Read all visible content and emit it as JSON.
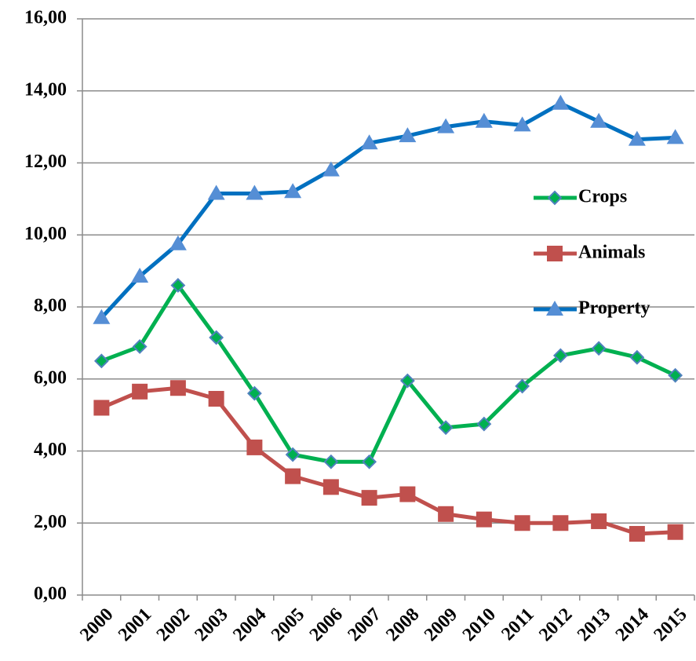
{
  "chart_data": {
    "type": "line",
    "categories": [
      "2000",
      "2001",
      "2002",
      "2003",
      "2004",
      "2005",
      "2006",
      "2007",
      "2008",
      "2009",
      "2010",
      "2011",
      "2012",
      "2013",
      "2014",
      "2015"
    ],
    "series": [
      {
        "name": "Crops",
        "color": "#00b050",
        "marker": "diamond",
        "marker_color": "#4f81bd",
        "values": [
          6.5,
          6.9,
          8.6,
          7.15,
          5.6,
          3.9,
          3.7,
          3.7,
          5.95,
          4.65,
          4.75,
          5.8,
          6.65,
          6.85,
          6.6,
          6.1
        ]
      },
      {
        "name": "Animals",
        "color": "#c0504d",
        "marker": "square",
        "marker_color": "#c0504d",
        "values": [
          5.2,
          5.65,
          5.75,
          5.45,
          4.1,
          3.3,
          3.0,
          2.7,
          2.8,
          2.25,
          2.1,
          2.0,
          2.0,
          2.05,
          1.7,
          1.75
        ]
      },
      {
        "name": "Property",
        "color": "#0070c0",
        "marker": "triangle",
        "marker_color": "#558ed5",
        "values": [
          7.7,
          8.85,
          9.75,
          11.15,
          11.15,
          11.2,
          11.8,
          12.55,
          12.75,
          13.0,
          13.15,
          13.05,
          13.65,
          13.15,
          12.65,
          12.7
        ]
      }
    ],
    "ylim": [
      0,
      16
    ],
    "yticks": [
      {
        "value": 0,
        "label": "0,00"
      },
      {
        "value": 2,
        "label": "2,00"
      },
      {
        "value": 4,
        "label": "4,00"
      },
      {
        "value": 6,
        "label": "6,00"
      },
      {
        "value": 8,
        "label": "8,00"
      },
      {
        "value": 10,
        "label": "10,00"
      },
      {
        "value": 12,
        "label": "12,00"
      },
      {
        "value": 14,
        "label": "14,00"
      },
      {
        "value": 16,
        "label": "16,00"
      }
    ],
    "grid": true,
    "legend": "right"
  }
}
